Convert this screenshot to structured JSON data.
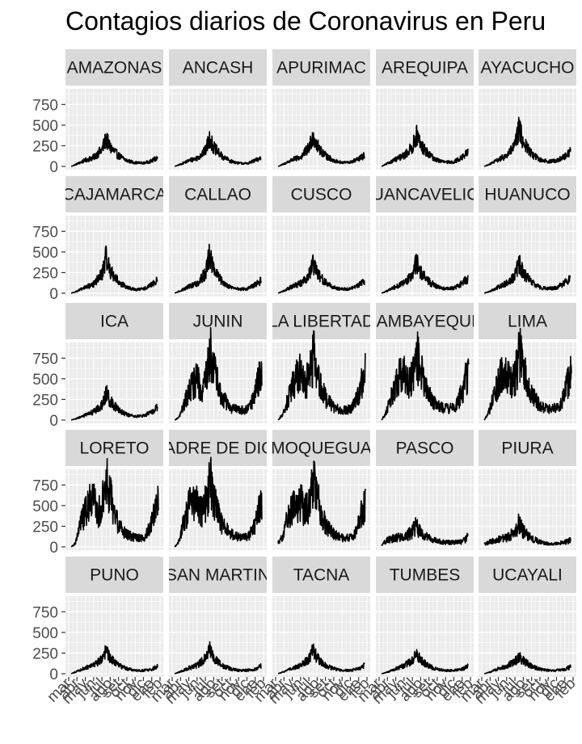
{
  "chart_data": {
    "type": "line",
    "title": "Contagios diarios de Coronavirus en Peru",
    "facet_layout": "5x5 small multiples, shared axes",
    "xlabel": "",
    "ylabel": "",
    "ylim": [
      0,
      900
    ],
    "y_ticks": [
      0,
      250,
      500,
      750
    ],
    "x_tick_labels": [
      "mar",
      "abr",
      "may",
      "jun",
      "jul",
      "ago",
      "set",
      "oct",
      "nov",
      "dic",
      "ene",
      "feb"
    ],
    "x_domain": [
      0,
      11
    ],
    "grid": true,
    "panel_background": "#EBEBEB",
    "strip_background": "#D9D9D9",
    "line_color": "#000000",
    "series": [
      {
        "name": "AMAZONAS",
        "x": [
          0.3,
          1,
          2,
          3,
          4,
          4.5,
          5,
          6,
          7,
          8,
          9,
          10,
          10.7
        ],
        "values": [
          0,
          30,
          75,
          110,
          200,
          330,
          230,
          130,
          70,
          45,
          40,
          65,
          110
        ],
        "noise": 0.35
      },
      {
        "name": "ANCASH",
        "x": [
          0.3,
          1,
          2,
          3,
          4,
          4.5,
          5,
          6,
          7,
          8,
          9,
          10,
          10.7
        ],
        "values": [
          0,
          25,
          70,
          100,
          190,
          340,
          230,
          120,
          65,
          40,
          35,
          70,
          105
        ],
        "noise": 0.35
      },
      {
        "name": "APURIMAC",
        "x": [
          0.3,
          1,
          2,
          3,
          4,
          4.5,
          5,
          6,
          7,
          8,
          9,
          10,
          10.7
        ],
        "values": [
          0,
          30,
          80,
          110,
          220,
          380,
          250,
          130,
          70,
          45,
          50,
          90,
          130
        ],
        "noise": 0.35
      },
      {
        "name": "AREQUIPA",
        "x": [
          0.3,
          1,
          2,
          3,
          4,
          4.5,
          5,
          6,
          7,
          8,
          9,
          10,
          10.7
        ],
        "values": [
          0,
          35,
          85,
          130,
          230,
          380,
          260,
          140,
          75,
          50,
          55,
          110,
          170
        ],
        "noise": 0.35
      },
      {
        "name": "AYACUCHO",
        "x": [
          0.3,
          1,
          2,
          3,
          4,
          4.5,
          5,
          6,
          7,
          8,
          9,
          10,
          10.7
        ],
        "values": [
          0,
          30,
          80,
          130,
          250,
          460,
          290,
          150,
          80,
          60,
          70,
          120,
          190
        ],
        "noise": 0.35
      },
      {
        "name": "CAJAMARCA",
        "x": [
          0.3,
          1,
          2,
          3,
          4,
          4.5,
          5,
          6,
          7,
          8,
          9,
          10,
          10.7
        ],
        "values": [
          0,
          25,
          70,
          110,
          230,
          440,
          270,
          140,
          70,
          45,
          50,
          100,
          160
        ],
        "noise": 0.35
      },
      {
        "name": "CALLAO",
        "x": [
          0.3,
          1,
          2,
          3,
          4,
          4.5,
          5,
          6,
          7,
          8,
          9,
          10,
          10.7
        ],
        "values": [
          0,
          30,
          80,
          120,
          240,
          470,
          280,
          140,
          75,
          50,
          50,
          100,
          150
        ],
        "noise": 0.35
      },
      {
        "name": "CUSCO",
        "x": [
          0.3,
          1,
          2,
          3,
          4,
          4.5,
          5,
          6,
          7,
          8,
          9,
          10,
          10.7
        ],
        "values": [
          0,
          30,
          80,
          120,
          220,
          350,
          240,
          130,
          70,
          50,
          55,
          100,
          150
        ],
        "noise": 0.35
      },
      {
        "name": "HUANCAVELICA",
        "x": [
          0.3,
          1,
          2,
          3,
          4,
          4.5,
          5,
          6,
          7,
          8,
          9,
          10,
          10.7
        ],
        "values": [
          0,
          30,
          80,
          120,
          220,
          380,
          250,
          140,
          75,
          55,
          60,
          120,
          180
        ],
        "noise": 0.35
      },
      {
        "name": "HUANUCO",
        "x": [
          0.3,
          1,
          2,
          3,
          4,
          4.5,
          5,
          6,
          7,
          8,
          9,
          10,
          10.7
        ],
        "values": [
          0,
          25,
          75,
          120,
          220,
          360,
          240,
          130,
          70,
          55,
          65,
          130,
          190
        ],
        "noise": 0.35
      },
      {
        "name": "ICA",
        "x": [
          0.3,
          1,
          2,
          3,
          4,
          4.5,
          5,
          6,
          7,
          8,
          9,
          10,
          10.7
        ],
        "values": [
          0,
          20,
          60,
          100,
          180,
          330,
          230,
          120,
          65,
          45,
          50,
          100,
          150
        ],
        "noise": 0.35
      },
      {
        "name": "JUNIN",
        "x": [
          0.3,
          0.8,
          1.5,
          2,
          2.5,
          3,
          3.5,
          4,
          4.6,
          5,
          5.5,
          6,
          7,
          8,
          9,
          9.5,
          10,
          10.5,
          10.8
        ],
        "values": [
          0,
          30,
          200,
          350,
          450,
          480,
          380,
          480,
          800,
          650,
          420,
          280,
          150,
          120,
          120,
          200,
          330,
          520,
          600
        ],
        "noise": 0.45
      },
      {
        "name": "LA LIBERTAD",
        "x": [
          0.3,
          0.8,
          1.5,
          2,
          2.5,
          3,
          3.5,
          4,
          4.6,
          5,
          5.5,
          6,
          7,
          8,
          9,
          9.5,
          10,
          10.5,
          10.8
        ],
        "values": [
          0,
          60,
          250,
          420,
          520,
          560,
          420,
          520,
          780,
          600,
          400,
          270,
          160,
          120,
          130,
          200,
          330,
          510,
          580
        ],
        "noise": 0.45
      },
      {
        "name": "LAMBAYEQUE",
        "x": [
          0.3,
          0.8,
          1.5,
          2,
          2.5,
          3,
          3.5,
          4,
          4.6,
          5,
          5.5,
          6,
          7,
          8,
          9,
          9.5,
          10,
          10.5,
          10.8
        ],
        "values": [
          0,
          80,
          280,
          420,
          540,
          560,
          430,
          520,
          780,
          620,
          420,
          290,
          170,
          140,
          140,
          210,
          350,
          520,
          580
        ],
        "noise": 0.45
      },
      {
        "name": "LIMA",
        "x": [
          0.3,
          0.8,
          1.5,
          2,
          2.5,
          3,
          3.5,
          4,
          4.6,
          5,
          5.5,
          6,
          7,
          8,
          9,
          9.5,
          10,
          10.5,
          10.8
        ],
        "values": [
          0,
          80,
          300,
          470,
          560,
          600,
          450,
          520,
          820,
          640,
          420,
          300,
          170,
          140,
          140,
          200,
          330,
          500,
          560
        ],
        "noise": 0.45
      },
      {
        "name": "LORETO",
        "x": [
          0.3,
          0.8,
          1.3,
          2,
          2.5,
          3,
          3.5,
          4,
          4.6,
          5,
          5.5,
          6,
          7,
          8,
          9,
          9.5,
          10,
          10.5,
          10.8
        ],
        "values": [
          0,
          40,
          250,
          430,
          520,
          560,
          400,
          500,
          800,
          620,
          400,
          260,
          150,
          110,
          110,
          170,
          290,
          460,
          540
        ],
        "noise": 0.45
      },
      {
        "name": "MADRE DE DIOS",
        "x": [
          0.3,
          0.8,
          1.3,
          2,
          2.5,
          3,
          3.5,
          4,
          4.6,
          5,
          5.5,
          6,
          7,
          8,
          9,
          9.5,
          10,
          10.5,
          10.8
        ],
        "values": [
          0,
          60,
          280,
          480,
          540,
          570,
          420,
          520,
          790,
          620,
          410,
          270,
          160,
          120,
          110,
          170,
          290,
          450,
          530
        ],
        "noise": 0.45
      },
      {
        "name": "MOQUEGUA",
        "x": [
          0.3,
          0.8,
          1.3,
          2,
          2.5,
          3,
          3.5,
          4,
          4.6,
          5,
          5.5,
          6,
          7,
          8,
          9,
          9.5,
          10,
          10.5,
          10.8
        ],
        "values": [
          60,
          120,
          300,
          460,
          520,
          560,
          420,
          520,
          790,
          600,
          410,
          270,
          160,
          110,
          110,
          170,
          290,
          450,
          530
        ],
        "noise": 0.45
      },
      {
        "name": "PASCO",
        "x": [
          0.3,
          1,
          2,
          3,
          4,
          4.5,
          5,
          6,
          7,
          8,
          9,
          10,
          10.7
        ],
        "values": [
          30,
          80,
          110,
          120,
          180,
          260,
          170,
          100,
          70,
          55,
          55,
          60,
          120
        ],
        "noise": 0.5
      },
      {
        "name": "PIURA",
        "x": [
          0.3,
          1,
          2,
          3,
          4,
          4.5,
          5,
          6,
          7,
          8,
          9,
          10,
          10.7
        ],
        "values": [
          30,
          60,
          90,
          110,
          180,
          290,
          180,
          100,
          60,
          40,
          40,
          55,
          80
        ],
        "noise": 0.5
      },
      {
        "name": "PUNO",
        "x": [
          0.3,
          1,
          2,
          3,
          4,
          4.5,
          5,
          6,
          7,
          8,
          9,
          10,
          10.7
        ],
        "values": [
          0,
          30,
          70,
          100,
          180,
          280,
          190,
          100,
          60,
          40,
          40,
          55,
          90
        ],
        "noise": 0.35
      },
      {
        "name": "SAN MARTIN",
        "x": [
          0.3,
          1,
          2,
          3,
          4,
          4.5,
          5,
          6,
          7,
          8,
          9,
          10,
          10.7
        ],
        "values": [
          0,
          25,
          70,
          100,
          190,
          300,
          200,
          100,
          60,
          40,
          40,
          55,
          95
        ],
        "noise": 0.35
      },
      {
        "name": "TACNA",
        "x": [
          0.3,
          1,
          2,
          3,
          4,
          4.5,
          5,
          6,
          7,
          8,
          9,
          10,
          10.7
        ],
        "values": [
          0,
          25,
          65,
          100,
          180,
          290,
          190,
          100,
          60,
          40,
          40,
          60,
          100
        ],
        "noise": 0.35
      },
      {
        "name": "TUMBES",
        "x": [
          0.3,
          1,
          2,
          3,
          4,
          4.5,
          5,
          6,
          7,
          8,
          9,
          10,
          10.7
        ],
        "values": [
          0,
          20,
          60,
          95,
          160,
          240,
          170,
          90,
          55,
          40,
          40,
          55,
          90
        ],
        "noise": 0.35
      },
      {
        "name": "UCAYALI",
        "x": [
          0.3,
          1,
          2,
          3,
          4,
          4.5,
          5,
          6,
          7,
          8,
          9,
          10,
          10.7
        ],
        "values": [
          0,
          20,
          60,
          90,
          150,
          200,
          160,
          90,
          55,
          40,
          40,
          55,
          80
        ],
        "noise": 0.35
      }
    ]
  }
}
